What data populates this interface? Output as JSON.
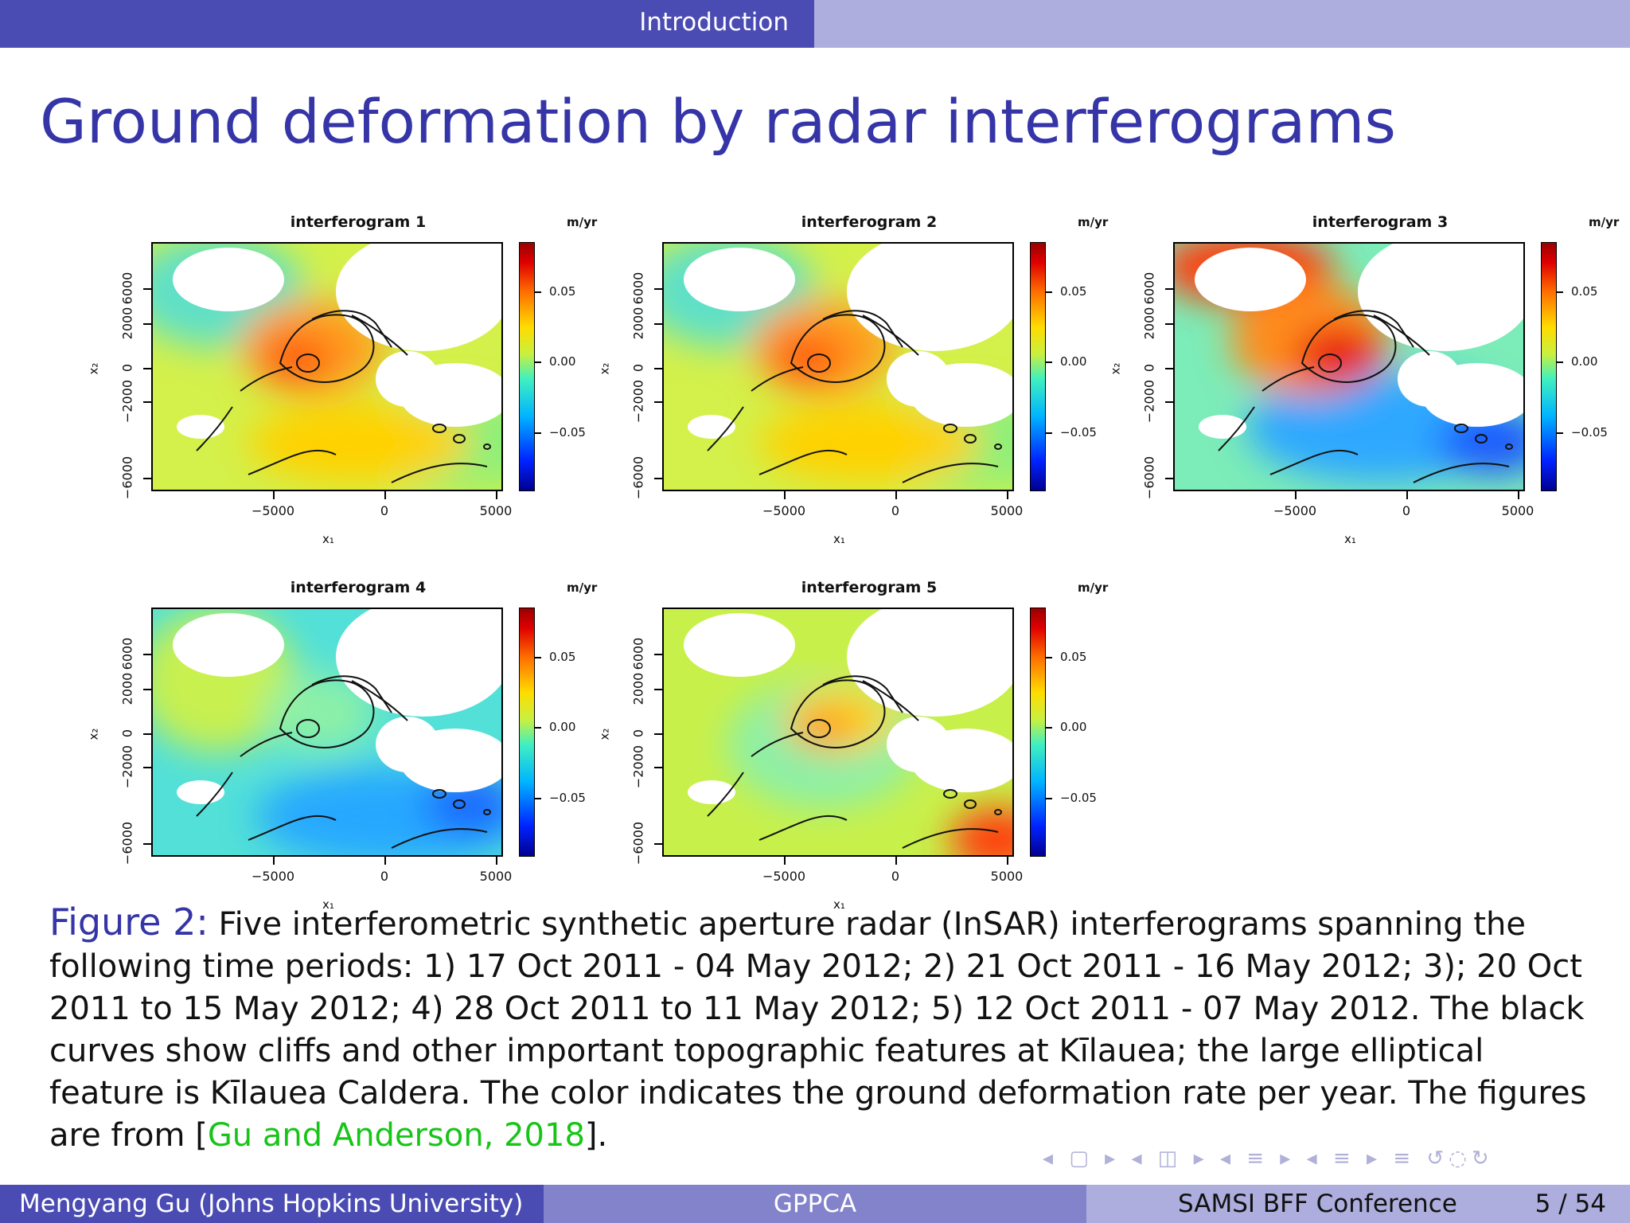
{
  "header": {
    "section": "Introduction"
  },
  "slide": {
    "title": "Ground deformation by radar interferograms"
  },
  "figure": {
    "colorbar_unit": "m/yr",
    "colorbar_ticks": [
      "0.05",
      "0.00",
      "−0.05"
    ],
    "x_ticks": [
      "−5000",
      "0",
      "5000"
    ],
    "y_ticks": [
      "6000",
      "2000",
      "0",
      "−2000",
      "−6000"
    ],
    "x_axis_label": "x₁",
    "y_axis_label": "x₂",
    "panels": [
      {
        "title": "interferogram 1",
        "pattern": "uplift-moderate"
      },
      {
        "title": "interferogram 2",
        "pattern": "uplift-moderate"
      },
      {
        "title": "interferogram 3",
        "pattern": "uplift-strong"
      },
      {
        "title": "interferogram 4",
        "pattern": "subsidence"
      },
      {
        "title": "interferogram 5",
        "pattern": "uplift-weak"
      }
    ],
    "colors": {
      "high": "#9a0000",
      "mid": "#c8f040",
      "low": "#00008f"
    }
  },
  "caption": {
    "label": "Figure 2:",
    "text": " Five interferometric synthetic aperture radar (InSAR) interferograms spanning the following time periods: 1) 17 Oct 2011 - 04 May 2012; 2) 21 Oct 2011 - 16 May 2012; 3); 20 Oct 2011 to 15 May 2012; 4) 28 Oct 2011 to 11 May 2012; 5) 12 Oct 2011 - 07 May 2012. The black curves show cliffs and other important topographic features at Kīlauea; the large elliptical feature is Kīlauea Caldera. The color indicates the ground deformation rate per year. The figures are from ",
    "citation": "Gu and Anderson, 2018",
    "open_bracket": "[",
    "close": "]."
  },
  "footer": {
    "author": "Mengyang Gu  (Johns Hopkins University)",
    "short_title": "GPPCA",
    "conference": "SAMSI BFF Conference",
    "page": "5 / 54"
  }
}
